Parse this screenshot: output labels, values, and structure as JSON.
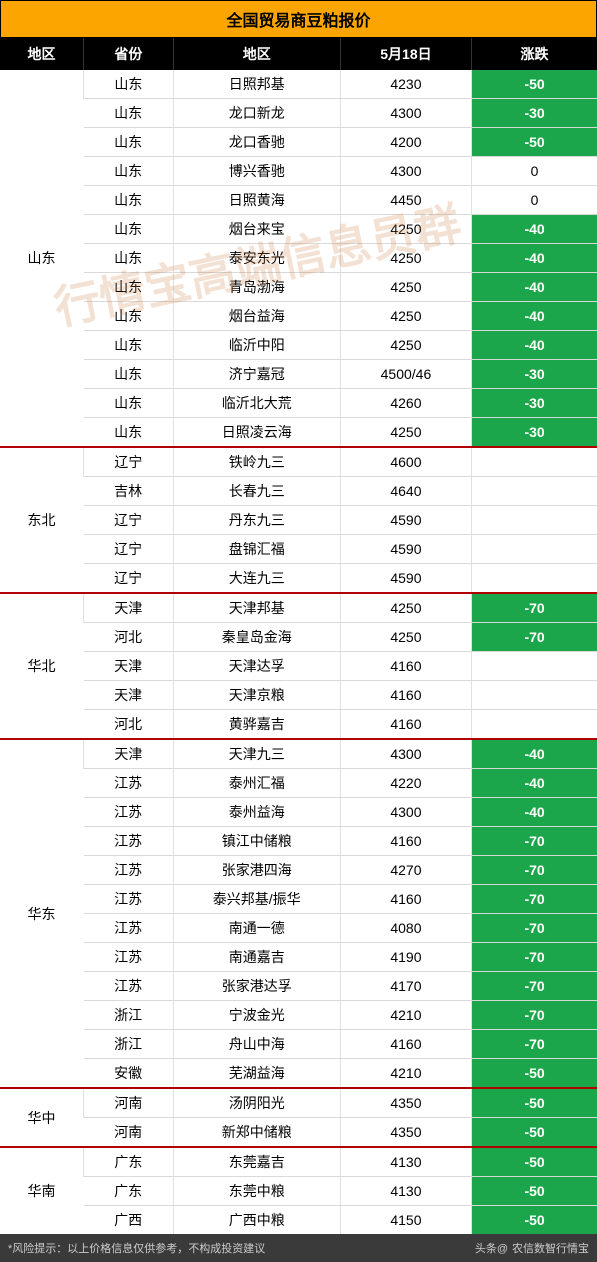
{
  "title": "全国贸易商豆粕报价",
  "columns": [
    "地区",
    "省份",
    "地区",
    "5月18日",
    "涨跌"
  ],
  "colors": {
    "title_bg": "#fca500",
    "header_bg": "#000000",
    "header_fg": "#ffffff",
    "neg_bg": "#1ca64c",
    "neg_fg": "#ffffff",
    "group_sep": "#b00000",
    "row_sep": "#d9d9d9",
    "footer_bg": "#3a3a3a",
    "footer_fg": "#cccccc"
  },
  "watermark": "行情宝高端信息员群",
  "groups": [
    {
      "region": "山东",
      "rows": [
        {
          "prov": "山东",
          "loc": "日照邦基",
          "price": "4230",
          "change": "-50"
        },
        {
          "prov": "山东",
          "loc": "龙口新龙",
          "price": "4300",
          "change": "-30"
        },
        {
          "prov": "山东",
          "loc": "龙口香驰",
          "price": "4200",
          "change": "-50"
        },
        {
          "prov": "山东",
          "loc": "博兴香驰",
          "price": "4300",
          "change": "0"
        },
        {
          "prov": "山东",
          "loc": "日照黄海",
          "price": "4450",
          "change": "0"
        },
        {
          "prov": "山东",
          "loc": "烟台来宝",
          "price": "4250",
          "change": "-40"
        },
        {
          "prov": "山东",
          "loc": "泰安东光",
          "price": "4250",
          "change": "-40"
        },
        {
          "prov": "山东",
          "loc": "青岛渤海",
          "price": "4250",
          "change": "-40"
        },
        {
          "prov": "山东",
          "loc": "烟台益海",
          "price": "4250",
          "change": "-40"
        },
        {
          "prov": "山东",
          "loc": "临沂中阳",
          "price": "4250",
          "change": "-40"
        },
        {
          "prov": "山东",
          "loc": "济宁嘉冠",
          "price": "4500/46",
          "change": "-30"
        },
        {
          "prov": "山东",
          "loc": "临沂北大荒",
          "price": "4260",
          "change": "-30"
        },
        {
          "prov": "山东",
          "loc": "日照凌云海",
          "price": "4250",
          "change": "-30"
        }
      ]
    },
    {
      "region": "东北",
      "rows": [
        {
          "prov": "辽宁",
          "loc": "铁岭九三",
          "price": "4600",
          "change": ""
        },
        {
          "prov": "吉林",
          "loc": "长春九三",
          "price": "4640",
          "change": ""
        },
        {
          "prov": "辽宁",
          "loc": "丹东九三",
          "price": "4590",
          "change": ""
        },
        {
          "prov": "辽宁",
          "loc": "盘锦汇福",
          "price": "4590",
          "change": ""
        },
        {
          "prov": "辽宁",
          "loc": "大连九三",
          "price": "4590",
          "change": ""
        }
      ]
    },
    {
      "region": "华北",
      "rows": [
        {
          "prov": "天津",
          "loc": "天津邦基",
          "price": "4250",
          "change": "-70"
        },
        {
          "prov": "河北",
          "loc": "秦皇岛金海",
          "price": "4250",
          "change": "-70"
        },
        {
          "prov": "天津",
          "loc": "天津达孚",
          "price": "4160",
          "change": ""
        },
        {
          "prov": "天津",
          "loc": "天津京粮",
          "price": "4160",
          "change": ""
        },
        {
          "prov": "河北",
          "loc": "黄骅嘉吉",
          "price": "4160",
          "change": ""
        }
      ]
    },
    {
      "region": "华东",
      "rows": [
        {
          "prov": "天津",
          "loc": "天津九三",
          "price": "4300",
          "change": "-40"
        },
        {
          "prov": "江苏",
          "loc": "泰州汇福",
          "price": "4220",
          "change": "-40"
        },
        {
          "prov": "江苏",
          "loc": "泰州益海",
          "price": "4300",
          "change": "-40"
        },
        {
          "prov": "江苏",
          "loc": "镇江中储粮",
          "price": "4160",
          "change": "-70"
        },
        {
          "prov": "江苏",
          "loc": "张家港四海",
          "price": "4270",
          "change": "-70"
        },
        {
          "prov": "江苏",
          "loc": "泰兴邦基/振华",
          "price": "4160",
          "change": "-70"
        },
        {
          "prov": "江苏",
          "loc": "南通一德",
          "price": "4080",
          "change": "-70"
        },
        {
          "prov": "江苏",
          "loc": "南通嘉吉",
          "price": "4190",
          "change": "-70"
        },
        {
          "prov": "江苏",
          "loc": "张家港达孚",
          "price": "4170",
          "change": "-70"
        },
        {
          "prov": "浙江",
          "loc": "宁波金光",
          "price": "4210",
          "change": "-70"
        },
        {
          "prov": "浙江",
          "loc": "舟山中海",
          "price": "4160",
          "change": "-70"
        },
        {
          "prov": "安徽",
          "loc": "芜湖益海",
          "price": "4210",
          "change": "-50"
        }
      ]
    },
    {
      "region": "华中",
      "rows": [
        {
          "prov": "河南",
          "loc": "汤阴阳光",
          "price": "4350",
          "change": "-50"
        },
        {
          "prov": "河南",
          "loc": "新郑中储粮",
          "price": "4350",
          "change": "-50"
        }
      ]
    },
    {
      "region": "华南",
      "rows": [
        {
          "prov": "广东",
          "loc": "东莞嘉吉",
          "price": "4130",
          "change": "-50"
        },
        {
          "prov": "广东",
          "loc": "东莞中粮",
          "price": "4130",
          "change": "-50"
        },
        {
          "prov": "广西",
          "loc": "广西中粮",
          "price": "4150",
          "change": "-50"
        }
      ]
    }
  ],
  "footer": {
    "risk": "*风险提示：以上价格信息仅供参考，不构成投资建议",
    "source_prefix": "头条@",
    "source": "农信数智行情宝"
  }
}
